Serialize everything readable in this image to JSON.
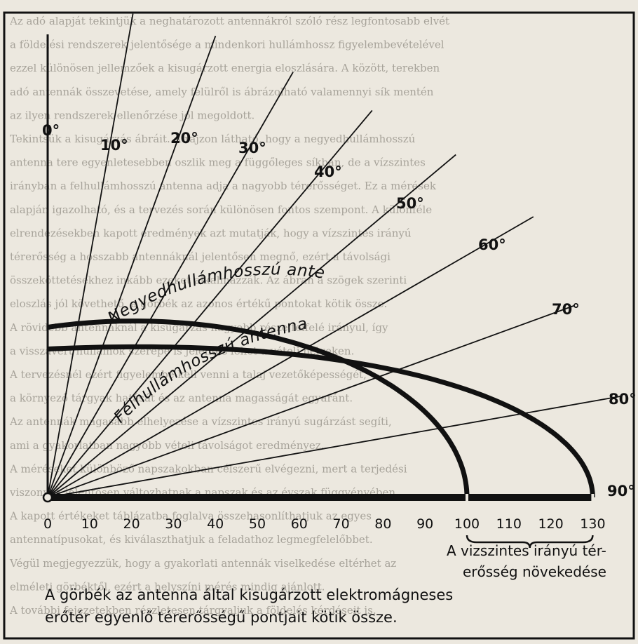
{
  "background_text": [
    "Az adó alapját tekintjük a neghatározott antennákról szóló rész legfontosabb elvét",
    "a földelési rendszerek jelentősége a mindenkori hullámhossz figyelembevételével",
    "ezzel különösen jellemzőek a kisugárzott energia eloszlására. A között, terekben",
    "adó antennák összevetése, amely felülről is ábrázolható valamennyi sík mentén",
    "az ilyen rendszerek ellenőrzése jól megoldott.",
    "Tekintsük a kisugárzás ábráit. A rajzon látható, hogy a negyedhullámhosszú",
    "antenna tere egyenletesebben oszlik meg a függőleges síkban, de a vízszintes",
    "irányban a felhullámhosszú antenna adja a nagyobb térerősséget. Ez a mérések",
    "alapján igazolható, és a tervezés során különösen fontos szempont. A különféle",
    "elrendezésekben kapott eredmények azt mutatják, hogy a vízszintes irányú",
    "térerősség a hosszabb antennáknál jelentősen megnő, ezért a távolsági",
    "összeköttetésekhez inkább ezeket alkalmazzák. Az ábrán a szögek szerinti",
    "eloszlás jól követhető, a görbék az azonos értékű pontokat kötik össze.",
    "A rövidebb antennáknál a kisugárzás nagyobb része felfelé irányul, így",
    "a visszavert hullámok szerepe is jelentős lehet a vételi helyeken.",
    "A tervezésnél ezért figyelembe kell venni a talaj vezetőképességét,",
    "a környező tárgyak hatását és az antenna magasságát egyaránt.",
    "Az antennák magasabb elhelyezése a vízszintes irányú sugárzást segíti,",
    "ami a gyakorlatban nagyobb vételi távolságot eredményez.",
    "A méréseket különböző napszakokban célszerű elvégezni, mert a terjedési",
    "viszonyok jelentősen változhatnak a napszak és az évszak függvényében.",
    "A kapott értékeket táblázatba foglalva összehasonlíthatjuk az egyes",
    "antennatípusokat, és kiválaszthatjuk a feladathoz legmegfelelőbbet.",
    "Végül megjegyezzük, hogy a gyakorlati antennák viselkedése eltérhet az",
    "elméleti görbéktől, ezért a helyszíni mérés mindig ajánlott.",
    "A további fejezetekben részletesen tárgyaljuk a földelés kérdéseit is."
  ],
  "angle_labels": [
    "0°",
    "10°",
    "20°",
    "30°",
    "40°",
    "50°",
    "60°",
    "70°",
    "80°",
    "90°"
  ],
  "curves": {
    "quarter_wave": {
      "label": "Negyedhullámhosszú antenna",
      "radius": 100
    },
    "half_wave": {
      "label": "Félhullámhosszú antenna",
      "radius": 130
    }
  },
  "axis": {
    "ticks": [
      0,
      10,
      20,
      30,
      40,
      50,
      60,
      70,
      80,
      90,
      100,
      110,
      120,
      130
    ],
    "range": [
      0,
      130
    ]
  },
  "annotation": {
    "line1": "A vizszintes irányú tér-",
    "line2": "erősség növekedése"
  },
  "caption": {
    "line1": "A görbék az antenna által kisugárzott elektromágneses",
    "line2": "erőtér egyenlő térerősségű pontjait kötik össze."
  },
  "colors": {
    "ink": "#111111",
    "paper": "#ece8df",
    "faded_text": "#a7a39a"
  }
}
